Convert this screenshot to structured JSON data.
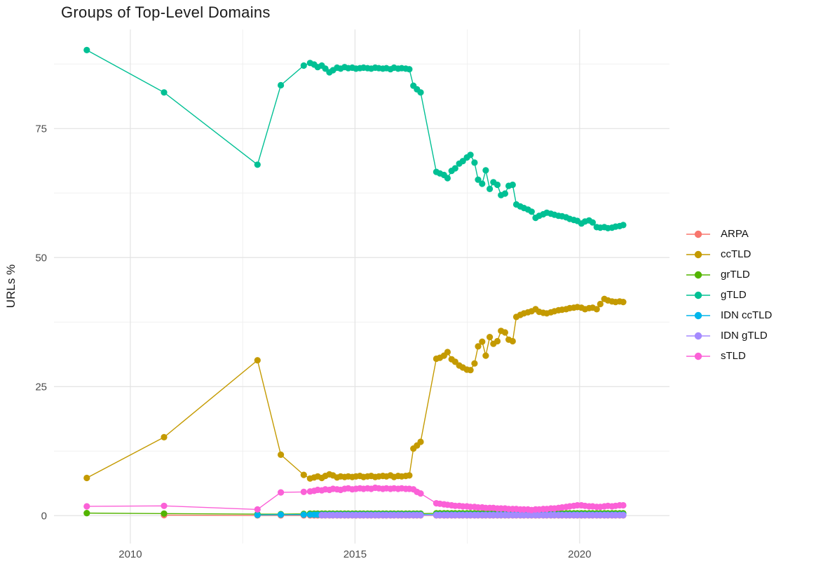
{
  "title": "Groups of Top-Level Domains",
  "chart_data": {
    "type": "line",
    "title": "Groups of Top-Level Domains",
    "xlabel": "",
    "ylabel": "URLs %",
    "grid": true,
    "legend_position": "right",
    "background": "#ffffff",
    "major_grid_color": "#e3e3e3",
    "minor_grid_color": "#f0f0f0",
    "tick_label_color": "#4d4d4d",
    "xlim": [
      2008.3,
      2022.0
    ],
    "ylim": [
      -5.4,
      94.2
    ],
    "x_ticks": {
      "values": [
        2010,
        2015,
        2020
      ],
      "labels": [
        "2010",
        "2015",
        "2020"
      ]
    },
    "x_minor": [
      2012.5,
      2017.5
    ],
    "y_ticks": {
      "values": [
        0,
        25,
        50,
        75
      ],
      "labels": [
        "0",
        "25",
        "50",
        "75"
      ]
    },
    "y_minor": [
      12.5,
      37.5,
      62.5,
      87.5
    ],
    "x": [
      2009.03,
      2010.75,
      2012.83,
      2013.35,
      2013.86,
      2014.0,
      2014.09,
      2014.17,
      2014.26,
      2014.34,
      2014.43,
      2014.51,
      2014.6,
      2014.68,
      2014.77,
      2014.85,
      2014.94,
      2015.02,
      2015.11,
      2015.19,
      2015.28,
      2015.36,
      2015.45,
      2015.53,
      2015.62,
      2015.7,
      2015.79,
      2015.87,
      2015.96,
      2016.04,
      2016.13,
      2016.21,
      2016.3,
      2016.38,
      2016.46,
      2016.81,
      2016.89,
      2016.98,
      2017.06,
      2017.15,
      2017.23,
      2017.32,
      2017.4,
      2017.49,
      2017.57,
      2017.66,
      2017.74,
      2017.83,
      2017.91,
      2018.0,
      2018.08,
      2018.17,
      2018.25,
      2018.34,
      2018.42,
      2018.51,
      2018.59,
      2018.68,
      2018.76,
      2018.85,
      2018.93,
      2019.02,
      2019.1,
      2019.19,
      2019.27,
      2019.36,
      2019.44,
      2019.53,
      2019.61,
      2019.7,
      2019.78,
      2019.87,
      2019.95,
      2020.04,
      2020.12,
      2020.21,
      2020.29,
      2020.38,
      2020.46,
      2020.55,
      2020.63,
      2020.72,
      2020.8,
      2020.89,
      2020.97
    ],
    "series": [
      {
        "name": "ARPA",
        "color": "#F8766D",
        "values": [
          null,
          0.1,
          0.05,
          0.05,
          0.05,
          0.05,
          0.05,
          0.05,
          0.05,
          0.05,
          0.05,
          0.05,
          0.05,
          0.05,
          0.05,
          0.05,
          0.05,
          0.05,
          0.05,
          0.05,
          0.05,
          0.05,
          0.05,
          0.05,
          0.05,
          0.05,
          0.05,
          0.05,
          0.05,
          0.05,
          0.05,
          0.05,
          0.05,
          0.05,
          0.05,
          0.05,
          0.05,
          0.05,
          0.05,
          0.05,
          0.05,
          0.05,
          0.05,
          0.05,
          0.05,
          0.05,
          0.05,
          0.05,
          0.05,
          0.05,
          0.05,
          0.05,
          0.05,
          0.05,
          0.05,
          0.05,
          0.05,
          0.05,
          0.05,
          0.05,
          0.05,
          0.05,
          0.05,
          0.05,
          0.05,
          0.05,
          0.05,
          0.05,
          0.05,
          0.05,
          0.05,
          0.05,
          0.05,
          0.05,
          0.05,
          0.05,
          0.05,
          0.05,
          0.05,
          0.05,
          0.05,
          0.05,
          0.05,
          0.05,
          0.05
        ]
      },
      {
        "name": "ccTLD",
        "color": "#C49A00",
        "values": [
          7.3,
          15.2,
          30.1,
          11.8,
          7.9,
          7.2,
          7.4,
          7.6,
          7.3,
          7.7,
          8.0,
          7.8,
          7.4,
          7.6,
          7.5,
          7.6,
          7.5,
          7.6,
          7.7,
          7.5,
          7.6,
          7.7,
          7.5,
          7.6,
          7.7,
          7.6,
          7.8,
          7.5,
          7.7,
          7.6,
          7.7,
          7.8,
          13.0,
          13.6,
          14.3,
          30.4,
          30.6,
          31.0,
          31.7,
          30.3,
          29.8,
          29.1,
          28.7,
          28.3,
          28.2,
          29.5,
          32.8,
          33.7,
          31.0,
          34.6,
          33.3,
          33.8,
          35.8,
          35.5,
          34.1,
          33.8,
          38.5,
          38.9,
          39.2,
          39.4,
          39.6,
          40.0,
          39.5,
          39.3,
          39.2,
          39.4,
          39.6,
          39.8,
          39.9,
          40.0,
          40.2,
          40.3,
          40.4,
          40.3,
          40.0,
          40.2,
          40.3,
          40.0,
          41.0,
          42.0,
          41.7,
          41.5,
          41.4,
          41.5,
          41.4
        ]
      },
      {
        "name": "grTLD",
        "color": "#53B400",
        "values": [
          0.5,
          0.4,
          0.3,
          0.3,
          0.35,
          0.4,
          0.4,
          0.4,
          0.4,
          0.4,
          0.4,
          0.4,
          0.4,
          0.4,
          0.4,
          0.4,
          0.4,
          0.4,
          0.4,
          0.4,
          0.4,
          0.4,
          0.4,
          0.4,
          0.4,
          0.4,
          0.4,
          0.4,
          0.4,
          0.4,
          0.4,
          0.4,
          0.4,
          0.4,
          0.4,
          0.45,
          0.45,
          0.45,
          0.45,
          0.45,
          0.45,
          0.45,
          0.45,
          0.45,
          0.45,
          0.45,
          0.45,
          0.45,
          0.45,
          0.45,
          0.45,
          0.45,
          0.45,
          0.45,
          0.45,
          0.45,
          0.45,
          0.45,
          0.45,
          0.45,
          0.45,
          0.45,
          0.45,
          0.45,
          0.45,
          0.45,
          0.45,
          0.45,
          0.45,
          0.45,
          0.45,
          0.45,
          0.45,
          0.45,
          0.45,
          0.45,
          0.45,
          0.45,
          0.45,
          0.45,
          0.45,
          0.45,
          0.45,
          0.45,
          0.45
        ]
      },
      {
        "name": "gTLD",
        "color": "#00C094",
        "values": [
          90.2,
          82.0,
          68.0,
          83.4,
          87.2,
          87.7,
          87.4,
          86.9,
          87.2,
          86.6,
          85.9,
          86.3,
          86.8,
          86.6,
          86.9,
          86.7,
          86.8,
          86.6,
          86.7,
          86.8,
          86.7,
          86.6,
          86.8,
          86.7,
          86.6,
          86.7,
          86.5,
          86.8,
          86.6,
          86.7,
          86.6,
          86.5,
          83.3,
          82.6,
          82.0,
          66.6,
          66.3,
          66.0,
          65.4,
          66.8,
          67.3,
          68.2,
          68.7,
          69.4,
          69.9,
          68.4,
          65.1,
          64.3,
          66.9,
          63.3,
          64.6,
          64.1,
          62.1,
          62.4,
          63.9,
          64.1,
          60.3,
          59.9,
          59.6,
          59.3,
          58.9,
          57.7,
          58.1,
          58.4,
          58.7,
          58.5,
          58.3,
          58.1,
          58.0,
          57.8,
          57.5,
          57.3,
          57.1,
          56.6,
          57.0,
          57.2,
          56.8,
          55.9,
          55.8,
          55.9,
          55.7,
          55.8,
          56.0,
          56.1,
          56.3
        ]
      },
      {
        "name": "IDN ccTLD",
        "color": "#00B6EB",
        "values": [
          null,
          null,
          0.15,
          0.2,
          0.2,
          0.2,
          0.2,
          0.2,
          0.2,
          0.2,
          0.2,
          0.2,
          0.2,
          0.2,
          0.2,
          0.2,
          0.2,
          0.2,
          0.2,
          0.2,
          0.2,
          0.2,
          0.2,
          0.2,
          0.2,
          0.2,
          0.2,
          0.2,
          0.2,
          0.2,
          0.2,
          0.2,
          0.2,
          0.2,
          0.2,
          0.2,
          0.2,
          0.2,
          0.2,
          0.2,
          0.2,
          0.2,
          0.2,
          0.2,
          0.2,
          0.2,
          0.2,
          0.2,
          0.2,
          0.2,
          0.2,
          0.2,
          0.2,
          0.2,
          0.2,
          0.2,
          0.2,
          0.2,
          0.2,
          0.2,
          0.2,
          0.2,
          0.2,
          0.2,
          0.2,
          0.2,
          0.2,
          0.2,
          0.2,
          0.2,
          0.2,
          0.2,
          0.2,
          0.2,
          0.2,
          0.2,
          0.2,
          0.2,
          0.2,
          0.2,
          0.2,
          0.2,
          0.2,
          0.2,
          0.2
        ]
      },
      {
        "name": "IDN gTLD",
        "color": "#A58AFF",
        "values": [
          null,
          null,
          null,
          null,
          null,
          null,
          null,
          null,
          0.1,
          0.1,
          0.1,
          0.1,
          0.1,
          0.1,
          0.1,
          0.1,
          0.1,
          0.1,
          0.1,
          0.1,
          0.1,
          0.1,
          0.1,
          0.1,
          0.1,
          0.1,
          0.1,
          0.1,
          0.1,
          0.1,
          0.1,
          0.1,
          0.1,
          0.1,
          0.1,
          0.1,
          0.1,
          0.1,
          0.1,
          0.1,
          0.1,
          0.1,
          0.1,
          0.1,
          0.1,
          0.1,
          0.1,
          0.1,
          0.1,
          0.1,
          0.1,
          0.1,
          0.1,
          0.1,
          0.1,
          0.1,
          0.1,
          0.1,
          0.1,
          0.1,
          0.1,
          0.1,
          0.1,
          0.1,
          0.1,
          0.1,
          0.1,
          0.1,
          0.1,
          0.1,
          0.1,
          0.1,
          0.1,
          0.1,
          0.1,
          0.1,
          0.1,
          0.1,
          0.1,
          0.1,
          0.1,
          0.1,
          0.1,
          0.1,
          0.1
        ]
      },
      {
        "name": "sTLD",
        "color": "#FB61D7",
        "values": [
          1.8,
          1.9,
          1.2,
          4.5,
          4.6,
          4.7,
          4.8,
          5.0,
          4.9,
          5.1,
          5.0,
          5.2,
          5.1,
          5.0,
          5.2,
          5.3,
          5.1,
          5.2,
          5.3,
          5.2,
          5.3,
          5.2,
          5.4,
          5.3,
          5.2,
          5.3,
          5.2,
          5.3,
          5.2,
          5.3,
          5.2,
          5.2,
          5.1,
          4.6,
          4.3,
          2.4,
          2.3,
          2.2,
          2.1,
          2.0,
          1.9,
          1.9,
          1.8,
          1.8,
          1.7,
          1.7,
          1.6,
          1.6,
          1.5,
          1.5,
          1.5,
          1.4,
          1.4,
          1.4,
          1.3,
          1.3,
          1.3,
          1.2,
          1.2,
          1.2,
          1.1,
          1.2,
          1.2,
          1.3,
          1.3,
          1.4,
          1.4,
          1.5,
          1.6,
          1.7,
          1.8,
          1.9,
          2.0,
          2.0,
          1.9,
          1.8,
          1.8,
          1.7,
          1.7,
          1.8,
          1.9,
          1.8,
          1.9,
          2.0,
          2.0
        ]
      }
    ]
  }
}
